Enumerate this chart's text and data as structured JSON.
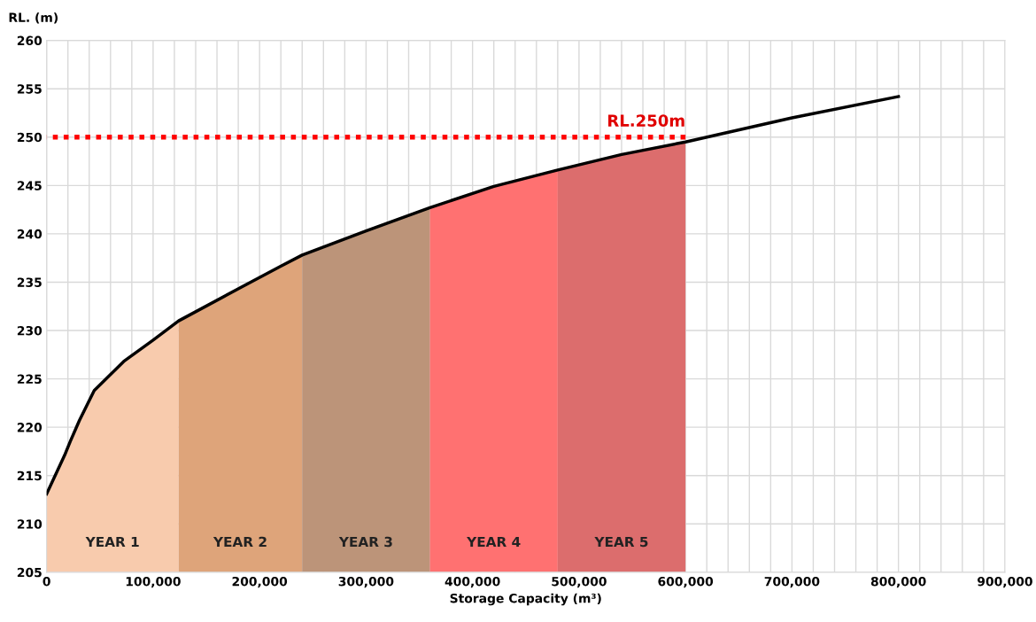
{
  "chart_data": {
    "type": "line",
    "xlabel": "Storage Capacity (m³)",
    "ylabel": "RL. (m)",
    "xlim": [
      0,
      900000
    ],
    "ylim": [
      205,
      260
    ],
    "xticks": [
      0,
      {
        "value": 20000,
        "label": null
      },
      {
        "value": 40000,
        "label": null
      },
      {
        "value": 60000,
        "label": null
      },
      {
        "value": 80000,
        "label": null
      },
      {
        "value": 100000,
        "label": "100,000"
      },
      {
        "value": 120000,
        "label": null
      },
      {
        "value": 140000,
        "label": null
      },
      {
        "value": 160000,
        "label": null
      },
      {
        "value": 180000,
        "label": null
      },
      {
        "value": 200000,
        "label": "200,000"
      },
      {
        "value": 220000,
        "label": null
      },
      {
        "value": 240000,
        "label": null
      },
      {
        "value": 260000,
        "label": null
      },
      {
        "value": 280000,
        "label": null
      },
      {
        "value": 300000,
        "label": "300,000"
      },
      {
        "value": 320000,
        "label": null
      },
      {
        "value": 340000,
        "label": null
      },
      {
        "value": 360000,
        "label": null
      },
      {
        "value": 380000,
        "label": null
      },
      {
        "value": 400000,
        "label": "400,000"
      },
      {
        "value": 420000,
        "label": null
      },
      {
        "value": 440000,
        "label": null
      },
      {
        "value": 460000,
        "label": null
      },
      {
        "value": 480000,
        "label": null
      },
      {
        "value": 500000,
        "label": "500,000"
      },
      {
        "value": 520000,
        "label": null
      },
      {
        "value": 540000,
        "label": null
      },
      {
        "value": 560000,
        "label": null
      },
      {
        "value": 580000,
        "label": null
      },
      {
        "value": 600000,
        "label": "600,000"
      },
      {
        "value": 620000,
        "label": null
      },
      {
        "value": 640000,
        "label": null
      },
      {
        "value": 660000,
        "label": null
      },
      {
        "value": 680000,
        "label": null
      },
      {
        "value": 700000,
        "label": "700,000"
      },
      {
        "value": 720000,
        "label": null
      },
      {
        "value": 740000,
        "label": null
      },
      {
        "value": 760000,
        "label": null
      },
      {
        "value": 780000,
        "label": null
      },
      {
        "value": 800000,
        "label": "800,000"
      },
      {
        "value": 820000,
        "label": null
      },
      {
        "value": 840000,
        "label": null
      },
      {
        "value": 860000,
        "label": null
      },
      {
        "value": 880000,
        "label": null
      },
      {
        "value": 900000,
        "label": "900,000"
      }
    ],
    "yticks": [
      205,
      210,
      215,
      220,
      225,
      230,
      235,
      240,
      245,
      250,
      255,
      260
    ],
    "grid": true,
    "legend": false,
    "series": [
      {
        "name": "YEAR 1",
        "type": "area",
        "color": "#f8cbad",
        "x": [
          0,
          16900,
          22500,
          30800,
          44700,
          72400,
          100000,
          124000
        ],
        "values": [
          213.1,
          217.1,
          218.6,
          220.7,
          223.8,
          226.8,
          229.0,
          231.0
        ]
      },
      {
        "name": "YEAR 2",
        "type": "area",
        "color": "#dea47a",
        "x": [
          124000,
          183000,
          219000,
          240000
        ],
        "values": [
          231.0,
          234.5,
          236.6,
          237.8
        ]
      },
      {
        "name": "YEAR 3",
        "type": "area",
        "color": "#bc9479",
        "x": [
          240000,
          300000,
          360000
        ],
        "values": [
          237.8,
          240.3,
          242.7
        ]
      },
      {
        "name": "YEAR 4",
        "type": "area",
        "color": "#ff7171",
        "x": [
          360000,
          420000,
          480000
        ],
        "values": [
          242.7,
          244.9,
          246.6
        ]
      },
      {
        "name": "YEAR 5",
        "type": "area",
        "color": "#dc6d6d",
        "x": [
          480000,
          540000,
          600000
        ],
        "values": [
          246.6,
          248.2,
          249.5
        ]
      },
      {
        "color": "#000000",
        "line_style": "solid",
        "x": [
          0,
          16900,
          22500,
          30800,
          44700,
          72400,
          100000,
          124000,
          183000,
          219000,
          240000,
          300000,
          360000,
          420000,
          480000,
          540000,
          600000,
          700000,
          800000
        ],
        "values": [
          213.1,
          217.1,
          218.6,
          220.7,
          223.8,
          226.8,
          229.0,
          231.0,
          234.5,
          236.6,
          237.8,
          240.3,
          242.7,
          244.9,
          246.6,
          248.2,
          249.5,
          252.0,
          254.2
        ]
      },
      {
        "color": "#ff0000",
        "line_style": "dotted",
        "x": [
          0,
          600000
        ],
        "values": [
          250,
          250
        ]
      }
    ],
    "annotations": [
      {
        "text": "RL.250m",
        "x": 600000,
        "y": 250
      }
    ]
  }
}
